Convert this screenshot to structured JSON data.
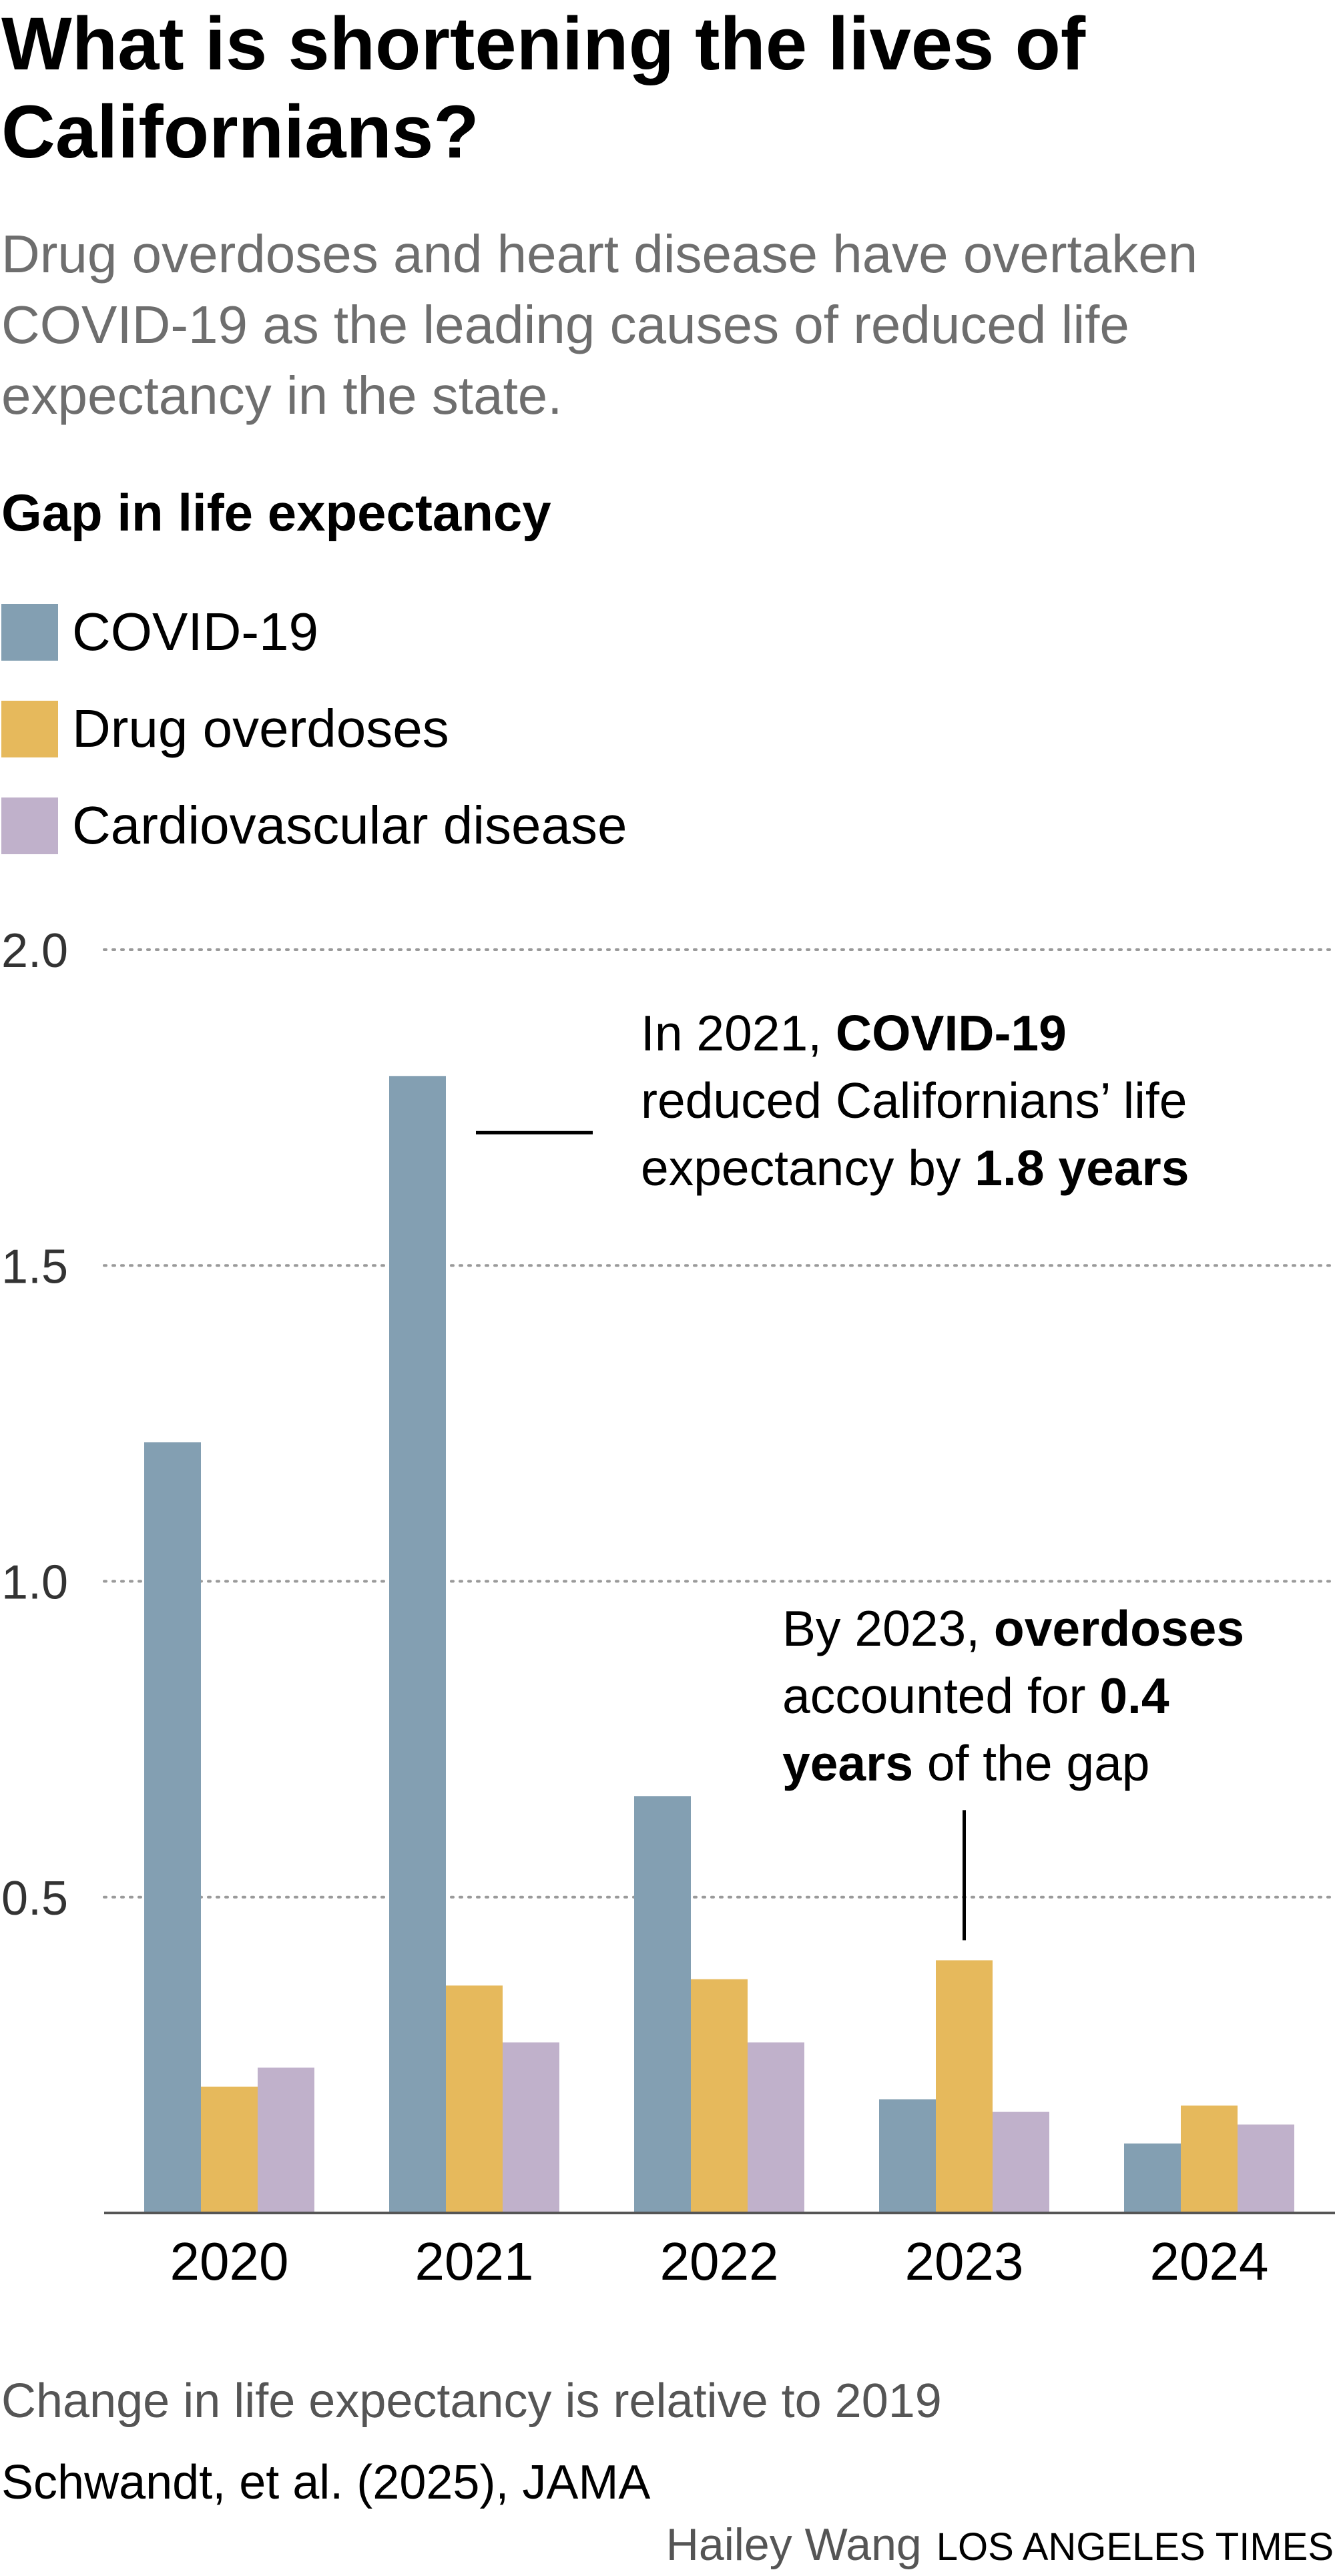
{
  "headline": "What is shortening the lives of Californians?",
  "dek": "Drug overdoses and heart disease have overtaken COVID-19 as the leading causes of reduced life expectancy in the state.",
  "chart_data": {
    "type": "bar",
    "title": "Gap in life expectancy",
    "categories": [
      "2020",
      "2021",
      "2022",
      "2023",
      "2024"
    ],
    "series": [
      {
        "name": "COVID-19",
        "color": "#839fb2",
        "values": [
          1.22,
          1.8,
          0.66,
          0.18,
          0.11
        ]
      },
      {
        "name": "Drug overdoses",
        "color": "#e6b95c",
        "values": [
          0.2,
          0.36,
          0.37,
          0.4,
          0.17
        ]
      },
      {
        "name": "Cardiovascular disease",
        "color": "#c0b1cb",
        "values": [
          0.23,
          0.27,
          0.27,
          0.16,
          0.14
        ]
      }
    ],
    "ylim": [
      0,
      2.0
    ],
    "yticks": [
      "2.0",
      "1.5",
      "1.0",
      "0.5"
    ],
    "grid": true,
    "legend_position": "top-left",
    "xlabel": "",
    "ylabel": "",
    "annotations": [
      {
        "parts": [
          {
            "text": "In 2021, ",
            "bold": false
          },
          {
            "text": "COVID-19",
            "bold": true
          },
          {
            "text": " reduced Californians’ life expectancy by ",
            "bold": false
          },
          {
            "text": "1.8 years",
            "bold": true
          }
        ]
      },
      {
        "parts": [
          {
            "text": "By 2023, ",
            "bold": false
          },
          {
            "text": "overdoses",
            "bold": true
          },
          {
            "text": " accounted for ",
            "bold": false
          },
          {
            "text": "0.4 years",
            "bold": true
          },
          {
            "text": " of the gap",
            "bold": false
          }
        ]
      }
    ]
  },
  "footer": {
    "note": "Change in life expectancy is relative to 2019",
    "source": "Schwandt, et al. (2025), JAMA",
    "byline": "Hailey Wang",
    "outlet": "LOS ANGELES TIMES"
  }
}
